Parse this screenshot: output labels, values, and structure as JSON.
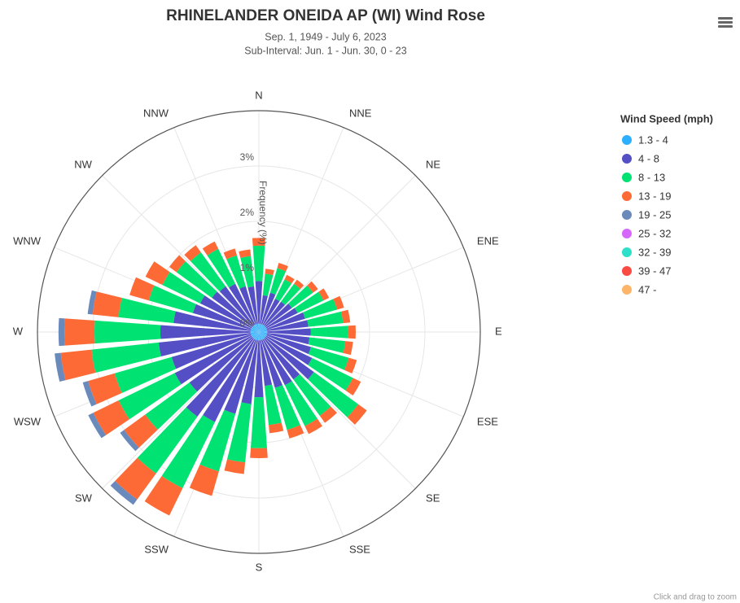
{
  "chart_data": {
    "type": "windrose",
    "title": "RHINELANDER ONEIDA AP (WI) Wind Rose",
    "subtitle": [
      "Sep. 1, 1949 - July 6, 2023",
      "Sub-Interval: Jun. 1 - Jun. 30, 0 - 23"
    ],
    "y_label": "Frequency (%)",
    "legend_title": "Wind Speed (mph)",
    "credit": "Click and drag to zoom",
    "x": [
      0,
      10,
      20,
      30,
      40,
      50,
      60,
      70,
      80,
      90,
      100,
      110,
      120,
      130,
      140,
      150,
      160,
      170,
      180,
      190,
      200,
      210,
      220,
      230,
      240,
      250,
      260,
      270,
      280,
      290,
      300,
      310,
      320,
      330,
      340,
      350
    ],
    "xticks": [
      {
        "value": 0,
        "label": "N"
      },
      {
        "value": 22.5,
        "label": "NNE"
      },
      {
        "value": 45,
        "label": "NE"
      },
      {
        "value": 67.5,
        "label": "ENE"
      },
      {
        "value": 90,
        "label": "E"
      },
      {
        "value": 112.5,
        "label": "ESE"
      },
      {
        "value": 135,
        "label": "SE"
      },
      {
        "value": 157.5,
        "label": "SSE"
      },
      {
        "value": 180,
        "label": "S"
      },
      {
        "value": 202.5,
        "label": "SSW"
      },
      {
        "value": 225,
        "label": "SW"
      },
      {
        "value": 247.5,
        "label": "WSW"
      },
      {
        "value": 270,
        "label": "W"
      },
      {
        "value": 292.5,
        "label": "WNW"
      },
      {
        "value": 315,
        "label": "NW"
      },
      {
        "value": 337.5,
        "label": "NNW"
      }
    ],
    "ylim": [
      0,
      4
    ],
    "yticks": [
      {
        "value": 0,
        "label": "0%"
      },
      {
        "value": 1,
        "label": "1%"
      },
      {
        "value": 2,
        "label": "2%"
      },
      {
        "value": 3,
        "label": "3%"
      }
    ],
    "grid": true,
    "series": [
      {
        "name": "1.3 - 4",
        "color": "#2caffe",
        "values": [
          0.15,
          0.15,
          0.15,
          0.15,
          0.15,
          0.15,
          0.15,
          0.15,
          0.15,
          0.15,
          0.15,
          0.15,
          0.15,
          0.15,
          0.15,
          0.15,
          0.15,
          0.15,
          0.15,
          0.15,
          0.15,
          0.15,
          0.15,
          0.15,
          0.15,
          0.15,
          0.15,
          0.15,
          0.15,
          0.15,
          0.15,
          0.15,
          0.15,
          0.15,
          0.15,
          0.15
        ]
      },
      {
        "name": "4 - 8",
        "color": "#544fc5",
        "values": [
          0.77,
          0.52,
          0.59,
          0.52,
          0.53,
          0.59,
          0.63,
          0.72,
          0.75,
          0.79,
          0.77,
          0.83,
          0.92,
          1.08,
          0.91,
          0.92,
          0.9,
          0.83,
          1.03,
          1.16,
          1.39,
          1.66,
          1.74,
          1.4,
          1.54,
          1.49,
          1.67,
          1.63,
          1.4,
          1.09,
          1.03,
          0.9,
          0.87,
          0.82,
          0.71,
          0.68
        ]
      },
      {
        "name": "8 - 13",
        "color": "#00e272",
        "values": [
          0.64,
          0.39,
          0.46,
          0.39,
          0.4,
          0.47,
          0.52,
          0.6,
          0.63,
          0.67,
          0.65,
          0.71,
          0.82,
          0.99,
          0.81,
          0.82,
          0.79,
          0.71,
          0.92,
          1.06,
          1.08,
          1.33,
          1.27,
          0.99,
          1.13,
          1.07,
          1.22,
          1.19,
          1.0,
          0.83,
          0.76,
          0.79,
          0.76,
          0.7,
          0.58,
          0.55
        ]
      },
      {
        "name": "13 - 19",
        "color": "#fe6a35",
        "values": [
          0.14,
          0.09,
          0.1,
          0.09,
          0.09,
          0.11,
          0.11,
          0.13,
          0.13,
          0.14,
          0.14,
          0.15,
          0.16,
          0.19,
          0.16,
          0.16,
          0.16,
          0.15,
          0.18,
          0.21,
          0.46,
          0.55,
          0.58,
          0.47,
          0.51,
          0.5,
          0.56,
          0.54,
          0.47,
          0.36,
          0.34,
          0.16,
          0.16,
          0.15,
          0.13,
          0.12
        ]
      },
      {
        "name": "19 - 25",
        "color": "#6b8abc",
        "values": [
          0,
          0,
          0,
          0,
          0,
          0,
          0,
          0,
          0,
          0,
          0,
          0,
          0,
          0,
          0,
          0,
          0,
          0,
          0,
          0,
          0,
          0,
          0.12,
          0.09,
          0.1,
          0.1,
          0.11,
          0.11,
          0.09,
          0,
          0,
          0,
          0,
          0,
          0,
          0
        ]
      },
      {
        "name": "25 - 32",
        "color": "#d568fb",
        "values": [
          0,
          0,
          0,
          0,
          0,
          0,
          0,
          0,
          0,
          0,
          0,
          0,
          0,
          0,
          0,
          0,
          0,
          0,
          0,
          0,
          0,
          0,
          0,
          0,
          0,
          0,
          0,
          0,
          0,
          0,
          0,
          0,
          0,
          0,
          0,
          0
        ]
      },
      {
        "name": "32 - 39",
        "color": "#2ee0ca",
        "values": [
          0,
          0,
          0,
          0,
          0,
          0,
          0,
          0,
          0,
          0,
          0,
          0,
          0,
          0,
          0,
          0,
          0,
          0,
          0,
          0,
          0,
          0,
          0,
          0,
          0,
          0,
          0,
          0,
          0,
          0,
          0,
          0,
          0,
          0,
          0,
          0
        ]
      },
      {
        "name": "39 - 47",
        "color": "#fa4b42",
        "values": [
          0,
          0,
          0,
          0,
          0,
          0,
          0,
          0,
          0,
          0,
          0,
          0,
          0,
          0,
          0,
          0,
          0,
          0,
          0,
          0,
          0,
          0,
          0,
          0,
          0,
          0,
          0,
          0,
          0,
          0,
          0,
          0,
          0,
          0,
          0,
          0
        ]
      },
      {
        "name": "47 -",
        "color": "#feb56a",
        "values": [
          0,
          0,
          0,
          0,
          0,
          0,
          0,
          0,
          0,
          0,
          0,
          0,
          0,
          0,
          0,
          0,
          0,
          0,
          0,
          0,
          0,
          0,
          0,
          0,
          0,
          0,
          0,
          0,
          0,
          0,
          0,
          0,
          0,
          0,
          0,
          0
        ]
      }
    ]
  }
}
